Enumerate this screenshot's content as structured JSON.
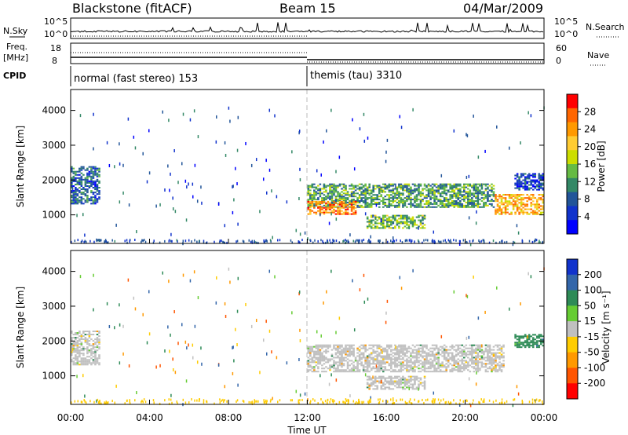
{
  "header": {
    "station": "Blackstone (fitACF)",
    "beam": "Beam 15",
    "date": "04/Mar/2009"
  },
  "top_panels": {
    "nsky_label": "N.Sky",
    "nsky_scale_hi": "10^5",
    "nsky_scale_lo": "10^0",
    "nsearch_label": "N.Search",
    "nsearch_scale_hi": "10^5",
    "nsearch_scale_lo": "10^0",
    "freq_label_1": "Freq.",
    "freq_label_2": "[MHz]",
    "freq_hi": "18",
    "freq_lo": "8",
    "nave_label": "Nave",
    "nave_hi": "60",
    "nave_lo": "0",
    "cpid_label": "CPID",
    "cpid_mode_1": "normal (fast stereo) 153",
    "cpid_mode_2": "themis (tau) 3310"
  },
  "power_colorbar": {
    "label": "Power [dB]",
    "ticks": [
      "28",
      "24",
      "20",
      "16",
      "12",
      "8",
      "4"
    ],
    "colors": [
      "#ff0000",
      "#ff6600",
      "#ff9900",
      "#ffcc33",
      "#ccdd00",
      "#66bb44",
      "#338866",
      "#225599",
      "#1133cc",
      "#0000ff"
    ]
  },
  "velocity_colorbar": {
    "label": "Velocity [m s⁻¹]",
    "ticks": [
      "200",
      "100",
      "50",
      "15",
      "-15",
      "-50",
      "-100",
      "-200"
    ],
    "colors": [
      "#1133cc",
      "#3366aa",
      "#2e8b57",
      "#66cc33",
      "#c0c0c0",
      "#ffcc00",
      "#ff9900",
      "#ff5500",
      "#ff0000"
    ]
  },
  "axes": {
    "ylabel": "Slant Range [km]",
    "xlabel": "Time UT",
    "yticks": [
      "4000",
      "3000",
      "2000",
      "1000"
    ],
    "xticks": [
      "00:00",
      "04:00",
      "08:00",
      "12:00",
      "16:00",
      "20:00",
      "00:00"
    ]
  },
  "chart_data": [
    {
      "type": "heatmap",
      "name": "Power",
      "x": [
        "00:00",
        "04:00",
        "08:00",
        "12:00",
        "16:00",
        "20:00",
        "00:00"
      ],
      "y": [
        1000,
        2000,
        3000,
        4000
      ],
      "ylabel": "Slant Range [km]",
      "xlabel": "Time UT",
      "colorbar": "Power [dB]",
      "color_ticks": [
        4,
        8,
        12,
        16,
        20,
        24,
        28
      ],
      "xlim_hours": [
        0,
        24
      ],
      "ylim_km": [
        180,
        4600
      ],
      "features": [
        {
          "t_start": 0.0,
          "t_end": 1.5,
          "range_lo": 1300,
          "range_hi": 2400,
          "level_db": 8
        },
        {
          "t_start": 12.0,
          "t_end": 21.5,
          "range_lo": 1200,
          "range_hi": 1900,
          "level_db": 12
        },
        {
          "t_start": 12.0,
          "t_end": 14.5,
          "range_lo": 1000,
          "range_hi": 1400,
          "level_db": 24
        },
        {
          "t_start": 15.0,
          "t_end": 18.0,
          "range_lo": 600,
          "range_hi": 1000,
          "level_db": 14
        },
        {
          "t_start": 21.5,
          "t_end": 24.0,
          "range_lo": 1000,
          "range_hi": 1600,
          "level_db": 22
        },
        {
          "t_start": 22.5,
          "t_end": 24.0,
          "range_lo": 1700,
          "range_hi": 2200,
          "level_db": 6
        }
      ]
    },
    {
      "type": "heatmap",
      "name": "Velocity",
      "x": [
        "00:00",
        "04:00",
        "08:00",
        "12:00",
        "16:00",
        "20:00",
        "00:00"
      ],
      "y": [
        1000,
        2000,
        3000,
        4000
      ],
      "ylabel": "Slant Range [km]",
      "xlabel": "Time UT",
      "colorbar": "Velocity [m s-1]",
      "color_ticks": [
        -200,
        -100,
        -50,
        -15,
        15,
        50,
        100,
        200
      ],
      "xlim_hours": [
        0,
        24
      ],
      "ylim_km": [
        180,
        4600
      ],
      "features": [
        {
          "t_start": 0.0,
          "t_end": 1.5,
          "range_lo": 1300,
          "range_hi": 2300,
          "velocity": 0
        },
        {
          "t_start": 12.0,
          "t_end": 22.0,
          "range_lo": 1100,
          "range_hi": 1900,
          "velocity": 0
        },
        {
          "t_start": 15.0,
          "t_end": 18.0,
          "range_lo": 600,
          "range_hi": 1000,
          "velocity": 0
        },
        {
          "t_start": 22.5,
          "t_end": 24.0,
          "range_lo": 1800,
          "range_hi": 2200,
          "velocity": 60
        }
      ]
    }
  ]
}
